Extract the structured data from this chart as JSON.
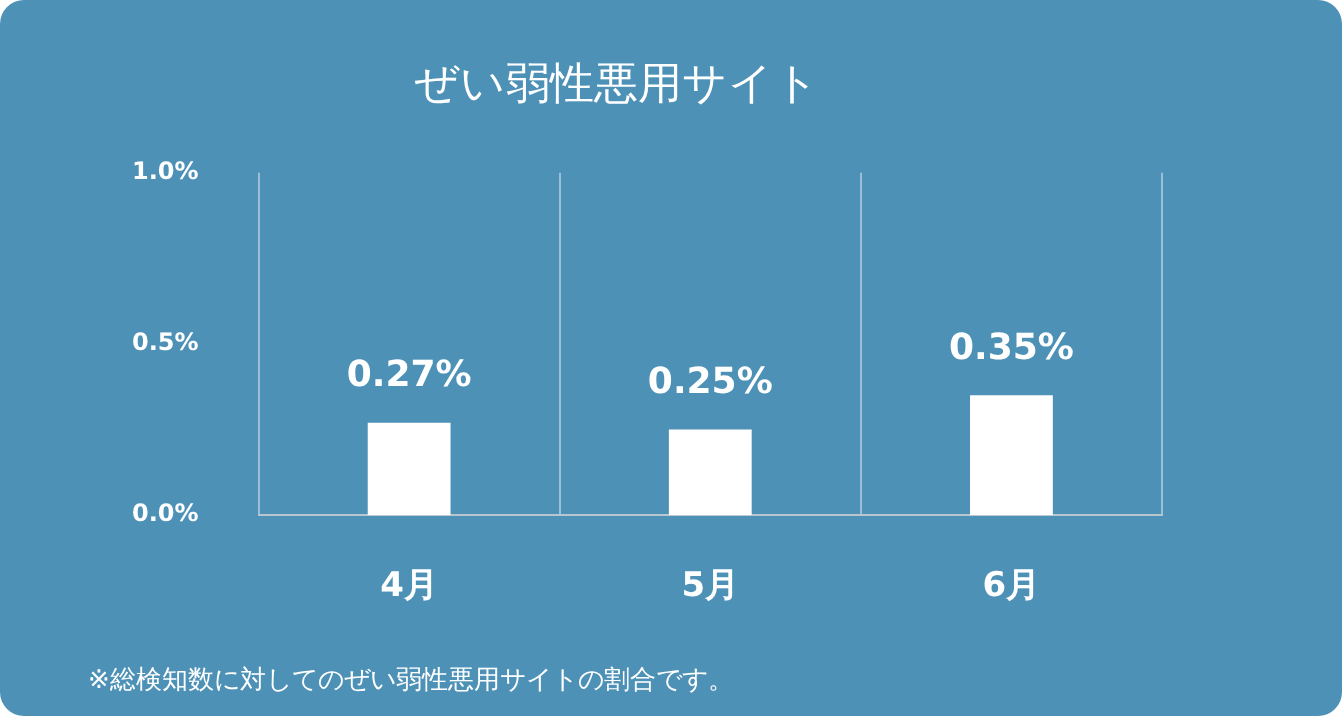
{
  "chart_data": {
    "type": "bar",
    "title": "ぜい弱性悪用サイト",
    "categories": [
      "4月",
      "5月",
      "6月"
    ],
    "values": [
      0.27,
      0.25,
      0.35
    ],
    "value_labels": [
      "0.27%",
      "0.25%",
      "0.35%"
    ],
    "color": "#ffffff",
    "ylim": [
      0,
      1
    ],
    "yticks": [
      {
        "value": 0,
        "label": "0.0%"
      },
      {
        "value": 0.5,
        "label": "0.5%"
      },
      {
        "value": 1,
        "label": "1.0%"
      }
    ],
    "grid": "x",
    "annotations": [
      "※総検知数に対してのぜい弱性悪用サイトの割合です。"
    ]
  }
}
